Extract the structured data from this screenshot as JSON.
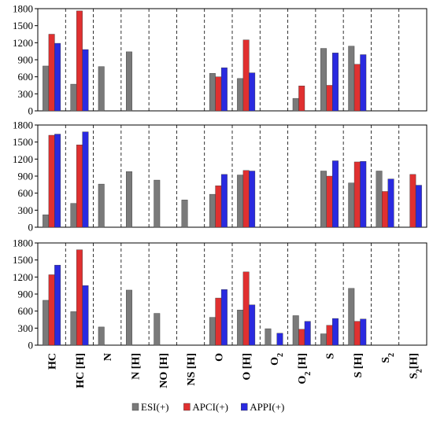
{
  "chart_data": {
    "type": "bar",
    "layout": "three vertically stacked panels sharing one category axis",
    "categories": [
      "HC",
      "HC [H]",
      "N",
      "N [H]",
      "NO [H]",
      "NS [H]",
      "O",
      "O [H]",
      "O2",
      "O2 [H]",
      "S",
      "S [H]",
      "S2",
      "S2[H]"
    ],
    "category_display": [
      {
        "base": "HC",
        "sub": "",
        "rest": ""
      },
      {
        "base": "HC [H]",
        "sub": "",
        "rest": ""
      },
      {
        "base": "N",
        "sub": "",
        "rest": ""
      },
      {
        "base": "N [H]",
        "sub": "",
        "rest": ""
      },
      {
        "base": "NO [H]",
        "sub": "",
        "rest": ""
      },
      {
        "base": "NS [H]",
        "sub": "",
        "rest": ""
      },
      {
        "base": "O",
        "sub": "",
        "rest": ""
      },
      {
        "base": "O [H]",
        "sub": "",
        "rest": ""
      },
      {
        "base": "O",
        "sub": "2",
        "rest": ""
      },
      {
        "base": "O",
        "sub": "2",
        "rest": " [H]"
      },
      {
        "base": "S",
        "sub": "",
        "rest": ""
      },
      {
        "base": "S [H]",
        "sub": "",
        "rest": ""
      },
      {
        "base": "S",
        "sub": "2",
        "rest": ""
      },
      {
        "base": "S",
        "sub": "2",
        "rest": "[H]"
      }
    ],
    "legend": {
      "position": "bottom",
      "entries": [
        {
          "name": "ESI(+)",
          "color": "#7a7a7a"
        },
        {
          "name": "APCI(+)",
          "color": "#e03030"
        },
        {
          "name": "APPI(+)",
          "color": "#2a2ae0"
        }
      ]
    },
    "colors": {
      "ESI": "#7a7a7a",
      "APCI": "#e03030",
      "APPI": "#2a2ae0"
    },
    "ylim": [
      0,
      1800
    ],
    "yticks": [
      0,
      300,
      600,
      900,
      1200,
      1500,
      1800
    ],
    "grid": "dashed vertical separators between categories",
    "panels": [
      {
        "series": [
          {
            "name": "ESI(+)",
            "values": [
              790,
              470,
              780,
              1040,
              0,
              0,
              660,
              570,
              0,
              220,
              1100,
              1140,
              0,
              0
            ]
          },
          {
            "name": "APCI(+)",
            "values": [
              1350,
              1760,
              0,
              0,
              0,
              0,
              600,
              1250,
              0,
              440,
              450,
              820,
              0,
              0
            ]
          },
          {
            "name": "APPI(+)",
            "values": [
              1190,
              1080,
              0,
              0,
              0,
              0,
              760,
              670,
              0,
              0,
              1020,
              990,
              0,
              0
            ]
          }
        ]
      },
      {
        "series": [
          {
            "name": "ESI(+)",
            "values": [
              220,
              420,
              760,
              980,
              830,
              480,
              580,
              920,
              0,
              0,
              990,
              780,
              990,
              0
            ]
          },
          {
            "name": "APCI(+)",
            "values": [
              1620,
              1450,
              0,
              0,
              0,
              0,
              730,
              1000,
              0,
              0,
              900,
              1150,
              630,
              930
            ]
          },
          {
            "name": "APPI(+)",
            "values": [
              1640,
              1680,
              0,
              0,
              0,
              0,
              930,
              990,
              0,
              0,
              1170,
              1160,
              850,
              740
            ]
          }
        ]
      },
      {
        "series": [
          {
            "name": "ESI(+)",
            "values": [
              790,
              590,
              320,
              970,
              560,
              0,
              490,
              620,
              290,
              520,
              200,
              1000,
              0,
              0
            ]
          },
          {
            "name": "APCI(+)",
            "values": [
              1240,
              1680,
              0,
              0,
              0,
              0,
              830,
              1290,
              0,
              280,
              350,
              420,
              0,
              0
            ]
          },
          {
            "name": "APPI(+)",
            "values": [
              1410,
              1050,
              0,
              0,
              0,
              0,
              980,
              710,
              210,
              420,
              470,
              460,
              0,
              0
            ]
          }
        ]
      }
    ]
  }
}
